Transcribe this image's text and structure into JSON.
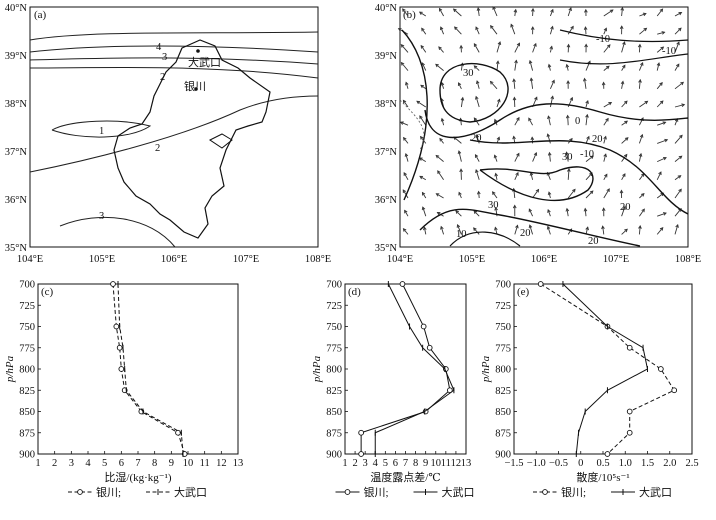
{
  "map_axes": {
    "lon_ticks": [
      "104°E",
      "105°E",
      "106°E",
      "107°E",
      "108°E"
    ],
    "lat_ticks": [
      "35°N",
      "36°N",
      "37°N",
      "38°N",
      "39°N",
      "40°N"
    ]
  },
  "panel_a": {
    "label": "(a)",
    "place_labels": [
      "大武口",
      "银川"
    ],
    "contour_labels": [
      "4",
      "3",
      "2",
      "1",
      "2",
      "3"
    ]
  },
  "panel_b": {
    "label": "(b)",
    "contour_labels": [
      "-10",
      "-10",
      "30",
      "0",
      "20",
      "20",
      "-10",
      "30",
      "30",
      "20",
      "10",
      "20",
      "20"
    ]
  },
  "chart_data": [
    {
      "type": "line",
      "panel_label": "(c)",
      "xlabel": "比湿/(kg·kg⁻¹)",
      "ylabel": "p/hPa",
      "xlim": [
        1,
        13
      ],
      "ylim": [
        900,
        700
      ],
      "x_ticks": [
        "1",
        "2",
        "3",
        "4",
        "5",
        "6",
        "7",
        "8",
        "9",
        "10",
        "11",
        "12",
        "13"
      ],
      "y_ticks": [
        "700",
        "725",
        "750",
        "775",
        "800",
        "825",
        "850",
        "875",
        "900"
      ],
      "pressure": [
        700,
        750,
        775,
        800,
        825,
        850,
        875,
        900
      ],
      "series": [
        {
          "name": "银川",
          "marker": "circle",
          "dash": "dashed",
          "values": [
            5.5,
            5.7,
            5.9,
            6.0,
            6.2,
            7.2,
            9.4,
            9.8
          ]
        },
        {
          "name": "大武口",
          "marker": "plus",
          "dash": "dashed",
          "values": [
            5.8,
            5.9,
            6.1,
            6.2,
            6.3,
            7.3,
            9.6,
            9.7
          ]
        }
      ]
    },
    {
      "type": "line",
      "panel_label": "(d)",
      "xlabel": "温度露点差/℃",
      "ylabel": "p/hPa",
      "xlim": [
        1,
        13
      ],
      "ylim": [
        900,
        700
      ],
      "x_ticks": [
        "1",
        "2",
        "3",
        "4",
        "5",
        "6",
        "7",
        "8",
        "9",
        "10",
        "11",
        "12",
        "13"
      ],
      "y_ticks": [
        "700",
        "725",
        "750",
        "775",
        "800",
        "825",
        "850",
        "875",
        "900"
      ],
      "pressure": [
        700,
        750,
        775,
        800,
        825,
        850,
        875,
        900
      ],
      "series": [
        {
          "name": "银川",
          "marker": "circle",
          "dash": "solid",
          "values": [
            6.7,
            8.8,
            9.4,
            11.0,
            11.4,
            9.0,
            2.6,
            2.6
          ]
        },
        {
          "name": "大武口",
          "marker": "plus",
          "dash": "solid",
          "values": [
            5.3,
            7.4,
            8.7,
            10.9,
            11.8,
            8.9,
            4.0,
            4.0
          ]
        }
      ]
    },
    {
      "type": "line",
      "panel_label": "(e)",
      "xlabel": "散度/10⁵s⁻¹",
      "ylabel": "p/hPa",
      "xlim": [
        -1.5,
        2.5
      ],
      "ylim": [
        900,
        700
      ],
      "x_ticks": [
        "−1.5",
        "−1.0",
        "−0.5",
        "0",
        "0.5",
        "1.0",
        "1.5",
        "2.0",
        "2.5"
      ],
      "y_ticks": [
        "700",
        "725",
        "750",
        "775",
        "800",
        "825",
        "850",
        "875",
        "900"
      ],
      "pressure": [
        700,
        750,
        775,
        800,
        825,
        850,
        875,
        900
      ],
      "series": [
        {
          "name": "银川",
          "marker": "circle",
          "dash": "dashed",
          "values": [
            -0.9,
            0.6,
            1.1,
            1.8,
            2.1,
            1.1,
            1.1,
            0.6
          ]
        },
        {
          "name": "大武口",
          "marker": "plus",
          "dash": "solid",
          "values": [
            -0.4,
            0.6,
            1.4,
            1.5,
            0.6,
            0.1,
            -0.05,
            -0.1
          ]
        }
      ]
    }
  ],
  "legend_separator": ";",
  "colors": {
    "ink": "#111111",
    "background": "#ffffff"
  }
}
